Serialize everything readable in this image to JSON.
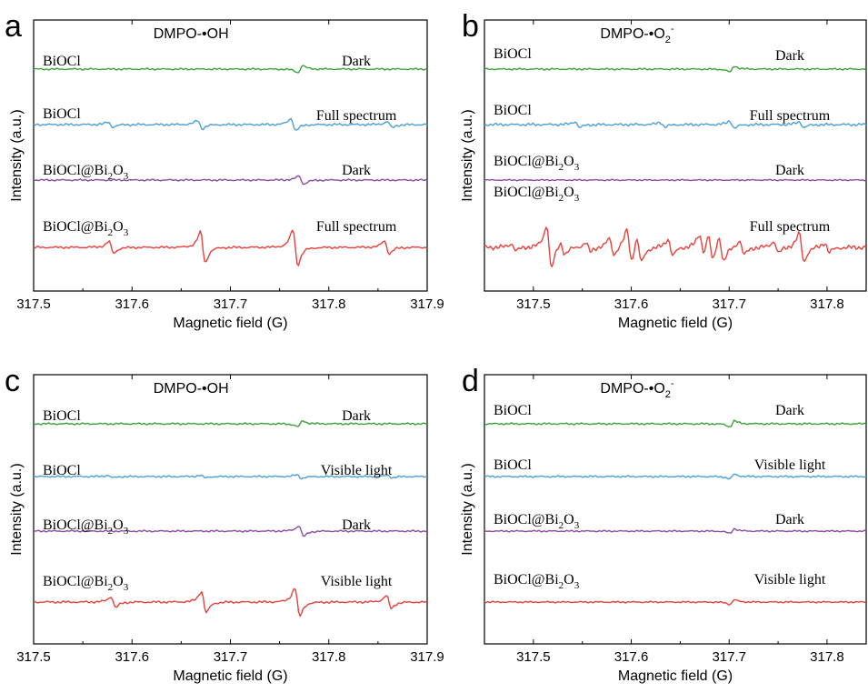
{
  "chart_data": [
    {
      "panel_letter": "a",
      "type": "line",
      "title": "DMPO-•OH",
      "xlabel": "Magnetic field (G)",
      "ylabel": "Intensity (a.u.)",
      "xlim": [
        317.5,
        317.9
      ],
      "xticks": [
        317.5,
        317.6,
        317.7,
        317.8,
        317.9
      ],
      "xtick_labels": [
        "317.5",
        "317.6",
        "317.7",
        "317.8",
        "317.9"
      ],
      "y_ticks_shown": false,
      "grid": false,
      "series": [
        {
          "sample_text": "BiOCl",
          "sample_sub": "",
          "condition": "Dark",
          "color": "#3aa13a",
          "noise": 0.8,
          "peaks": [
            {
              "x": 317.771,
              "a": -6
            }
          ]
        },
        {
          "sample_text": "BiOCl",
          "sample_sub": "",
          "condition": "Full spectrum",
          "color": "#4a9fd8",
          "noise": 1.0,
          "peaks": [
            {
              "x": 317.578,
              "a": 4
            },
            {
              "x": 317.669,
              "a": 7
            },
            {
              "x": 317.764,
              "a": 10
            },
            {
              "x": 317.862,
              "a": 5
            }
          ]
        },
        {
          "sample_text": "BiOCl@Bi",
          "sample_sub": "2",
          "sample_tail": "O",
          "sample_sub2": "3",
          "condition": "Dark",
          "color": "#8a4a9f",
          "noise": 0.8,
          "peaks": [
            {
              "x": 317.772,
              "a": 7
            }
          ]
        },
        {
          "sample_text": "BiOCl@Bi",
          "sample_sub": "2",
          "sample_tail": "O",
          "sample_sub2": "3",
          "condition": "Full spectrum",
          "color": "#e8403a",
          "noise": 1.0,
          "peaks": [
            {
              "x": 317.579,
              "a": 10
            },
            {
              "x": 317.672,
              "a": 26
            },
            {
              "x": 317.766,
              "a": 30
            },
            {
              "x": 317.859,
              "a": 11
            }
          ]
        }
      ]
    },
    {
      "panel_letter": "b",
      "type": "line",
      "title": "DMPO-•O",
      "title_sub": "2",
      "title_sup": "-",
      "xlabel": "Magnetic field (G)",
      "ylabel": "Intensity (a.u.)",
      "xlim": [
        317.45,
        317.84
      ],
      "xticks": [
        317.5,
        317.6,
        317.7,
        317.8
      ],
      "xtick_labels": [
        "317.5",
        "317.6",
        "317.7",
        "317.8"
      ],
      "y_ticks_shown": false,
      "grid": false,
      "series": [
        {
          "sample_text": "BiOCl",
          "sample_sub": "",
          "condition": "Dark",
          "color": "#3aa13a",
          "noise": 0.8,
          "peaks": [
            {
              "x": 317.703,
              "a": -5
            }
          ]
        },
        {
          "sample_text": "BiOCl",
          "sample_sub": "",
          "condition": "Full spectrum",
          "color": "#4a9fd8",
          "noise": 1.2,
          "peaks": [
            {
              "x": 317.545,
              "a": 5
            },
            {
              "x": 317.632,
              "a": 4
            },
            {
              "x": 317.703,
              "a": 6
            },
            {
              "x": 317.774,
              "a": 5
            }
          ]
        },
        {
          "sample_text": "BiOCl@Bi",
          "sample_sub": "2",
          "sample_tail": "O",
          "sample_sub2": "3",
          "condition": "Dark",
          "color": "#8a4a9f",
          "noise": 0.6,
          "peaks": []
        },
        {
          "sample_text": "BiOCl@Bi",
          "sample_sub": "2",
          "sample_tail": "O",
          "sample_sub2": "3",
          "condition": "Full spectrum",
          "color": "#e8403a",
          "noise": 2.0,
          "peaks": [
            {
              "x": 317.48,
              "a": 6
            },
            {
              "x": 317.516,
              "a": 36
            },
            {
              "x": 317.53,
              "a": 10
            },
            {
              "x": 317.556,
              "a": 8
            },
            {
              "x": 317.58,
              "a": 14
            },
            {
              "x": 317.598,
              "a": 28
            },
            {
              "x": 317.608,
              "a": 22
            },
            {
              "x": 317.64,
              "a": 14
            },
            {
              "x": 317.672,
              "a": 18
            },
            {
              "x": 317.681,
              "a": 24
            },
            {
              "x": 317.692,
              "a": 22
            },
            {
              "x": 317.713,
              "a": 12
            },
            {
              "x": 317.748,
              "a": 10
            },
            {
              "x": 317.774,
              "a": 24
            },
            {
              "x": 317.8,
              "a": 8
            }
          ]
        }
      ]
    },
    {
      "panel_letter": "c",
      "type": "line",
      "title": "DMPO-•OH",
      "xlabel": "Magnetic field (G)",
      "ylabel": "Intensity (a.u.)",
      "xlim": [
        317.5,
        317.9
      ],
      "xticks": [
        317.5,
        317.6,
        317.7,
        317.8,
        317.9
      ],
      "xtick_labels": [
        "317.5",
        "317.6",
        "317.7",
        "317.8",
        "317.9"
      ],
      "y_ticks_shown": false,
      "grid": false,
      "series": [
        {
          "sample_text": "BiOCl",
          "sample_sub": "",
          "condition": "Dark",
          "color": "#3aa13a",
          "noise": 0.8,
          "peaks": [
            {
              "x": 317.771,
              "a": -5
            }
          ]
        },
        {
          "sample_text": "BiOCl",
          "sample_sub": "",
          "condition": "Visible light",
          "color": "#4a9fd8",
          "noise": 0.8,
          "peaks": [
            {
              "x": 317.578,
              "a": 2
            },
            {
              "x": 317.672,
              "a": 2
            },
            {
              "x": 317.77,
              "a": 3
            },
            {
              "x": 317.862,
              "a": 2
            }
          ]
        },
        {
          "sample_text": "BiOCl@Bi",
          "sample_sub": "2",
          "sample_tail": "O",
          "sample_sub2": "3",
          "condition": "Dark",
          "color": "#8a4a9f",
          "noise": 0.8,
          "peaks": [
            {
              "x": 317.772,
              "a": 9
            }
          ]
        },
        {
          "sample_text": "BiOCl@Bi",
          "sample_sub": "2",
          "sample_tail": "O",
          "sample_sub2": "3",
          "condition": "Visible light",
          "color": "#e8403a",
          "noise": 1.0,
          "peaks": [
            {
              "x": 317.581,
              "a": 9
            },
            {
              "x": 317.673,
              "a": 18
            },
            {
              "x": 317.768,
              "a": 24
            },
            {
              "x": 317.861,
              "a": 11
            }
          ]
        }
      ]
    },
    {
      "panel_letter": "d",
      "type": "line",
      "title": "DMPO-•O",
      "title_sub": "2",
      "title_sup": "-",
      "xlabel": "Magnetic field (G)",
      "ylabel": "Intensity (a.u.)",
      "xlim": [
        317.45,
        317.84
      ],
      "xticks": [
        317.5,
        317.6,
        317.7,
        317.8
      ],
      "xtick_labels": [
        "317.5",
        "317.6",
        "317.7",
        "317.8"
      ],
      "y_ticks_shown": false,
      "grid": false,
      "series": [
        {
          "sample_text": "BiOCl",
          "sample_sub": "",
          "condition": "Dark",
          "color": "#3aa13a",
          "noise": 0.8,
          "peaks": [
            {
              "x": 317.703,
              "a": -5
            }
          ]
        },
        {
          "sample_text": "BiOCl",
          "sample_sub": "",
          "condition": "Visible light",
          "color": "#4a9fd8",
          "noise": 0.8,
          "peaks": [
            {
              "x": 317.703,
              "a": -4
            }
          ]
        },
        {
          "sample_text": "BiOCl@Bi",
          "sample_sub": "2",
          "sample_tail": "O",
          "sample_sub2": "3",
          "condition": "Dark",
          "color": "#8a4a9f",
          "noise": 0.7,
          "peaks": [
            {
              "x": 317.703,
              "a": -4
            }
          ]
        },
        {
          "sample_text": "BiOCl@Bi",
          "sample_sub": "2",
          "sample_tail": "O",
          "sample_sub2": "3",
          "condition": "Visible light",
          "color": "#e8403a",
          "noise": 0.7,
          "peaks": [
            {
              "x": 317.703,
              "a": -4
            }
          ]
        }
      ]
    }
  ]
}
